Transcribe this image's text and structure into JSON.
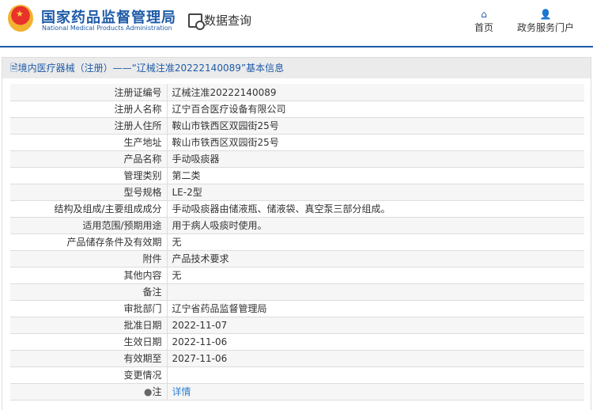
{
  "header": {
    "org_cn": "国家药品监督管理局",
    "org_en": "National Medical Products Administration",
    "section": "数据查询",
    "nav": [
      {
        "label": "首页",
        "icon": "home-icon"
      },
      {
        "label": "政务服务门户",
        "icon": "user-icon"
      }
    ]
  },
  "panel": {
    "title": "境内医疗器械（注册）——“辽械注准20222140089”基本信息"
  },
  "rows": [
    {
      "label": "注册证编号",
      "value": "辽械注准20222140089"
    },
    {
      "label": "注册人名称",
      "value": "辽宁百合医疗设备有限公司"
    },
    {
      "label": "注册人住所",
      "value": "鞍山市铁西区双园街25号"
    },
    {
      "label": "生产地址",
      "value": "鞍山市铁西区双园街25号"
    },
    {
      "label": "产品名称",
      "value": "手动吸痰器"
    },
    {
      "label": "管理类别",
      "value": "第二类"
    },
    {
      "label": "型号规格",
      "value": "LE-2型"
    },
    {
      "label": "结构及组成/主要组成成分",
      "value": "手动吸痰器由储液瓶、储液袋、真空泵三部分组成。"
    },
    {
      "label": "适用范围/预期用途",
      "value": "用于病人吸痰时使用。"
    },
    {
      "label": "产品储存条件及有效期",
      "value": "无"
    },
    {
      "label": "附件",
      "value": "产品技术要求"
    },
    {
      "label": "其他内容",
      "value": "无"
    },
    {
      "label": "备注",
      "value": ""
    },
    {
      "label": "审批部门",
      "value": "辽宁省药品监督管理局"
    },
    {
      "label": "批准日期",
      "value": "2022-11-07"
    },
    {
      "label": "生效日期",
      "value": "2022-11-06"
    },
    {
      "label": "有效期至",
      "value": "2027-11-06"
    },
    {
      "label": "变更情况",
      "value": ""
    }
  ],
  "note": {
    "label": "注",
    "link": "详情"
  }
}
